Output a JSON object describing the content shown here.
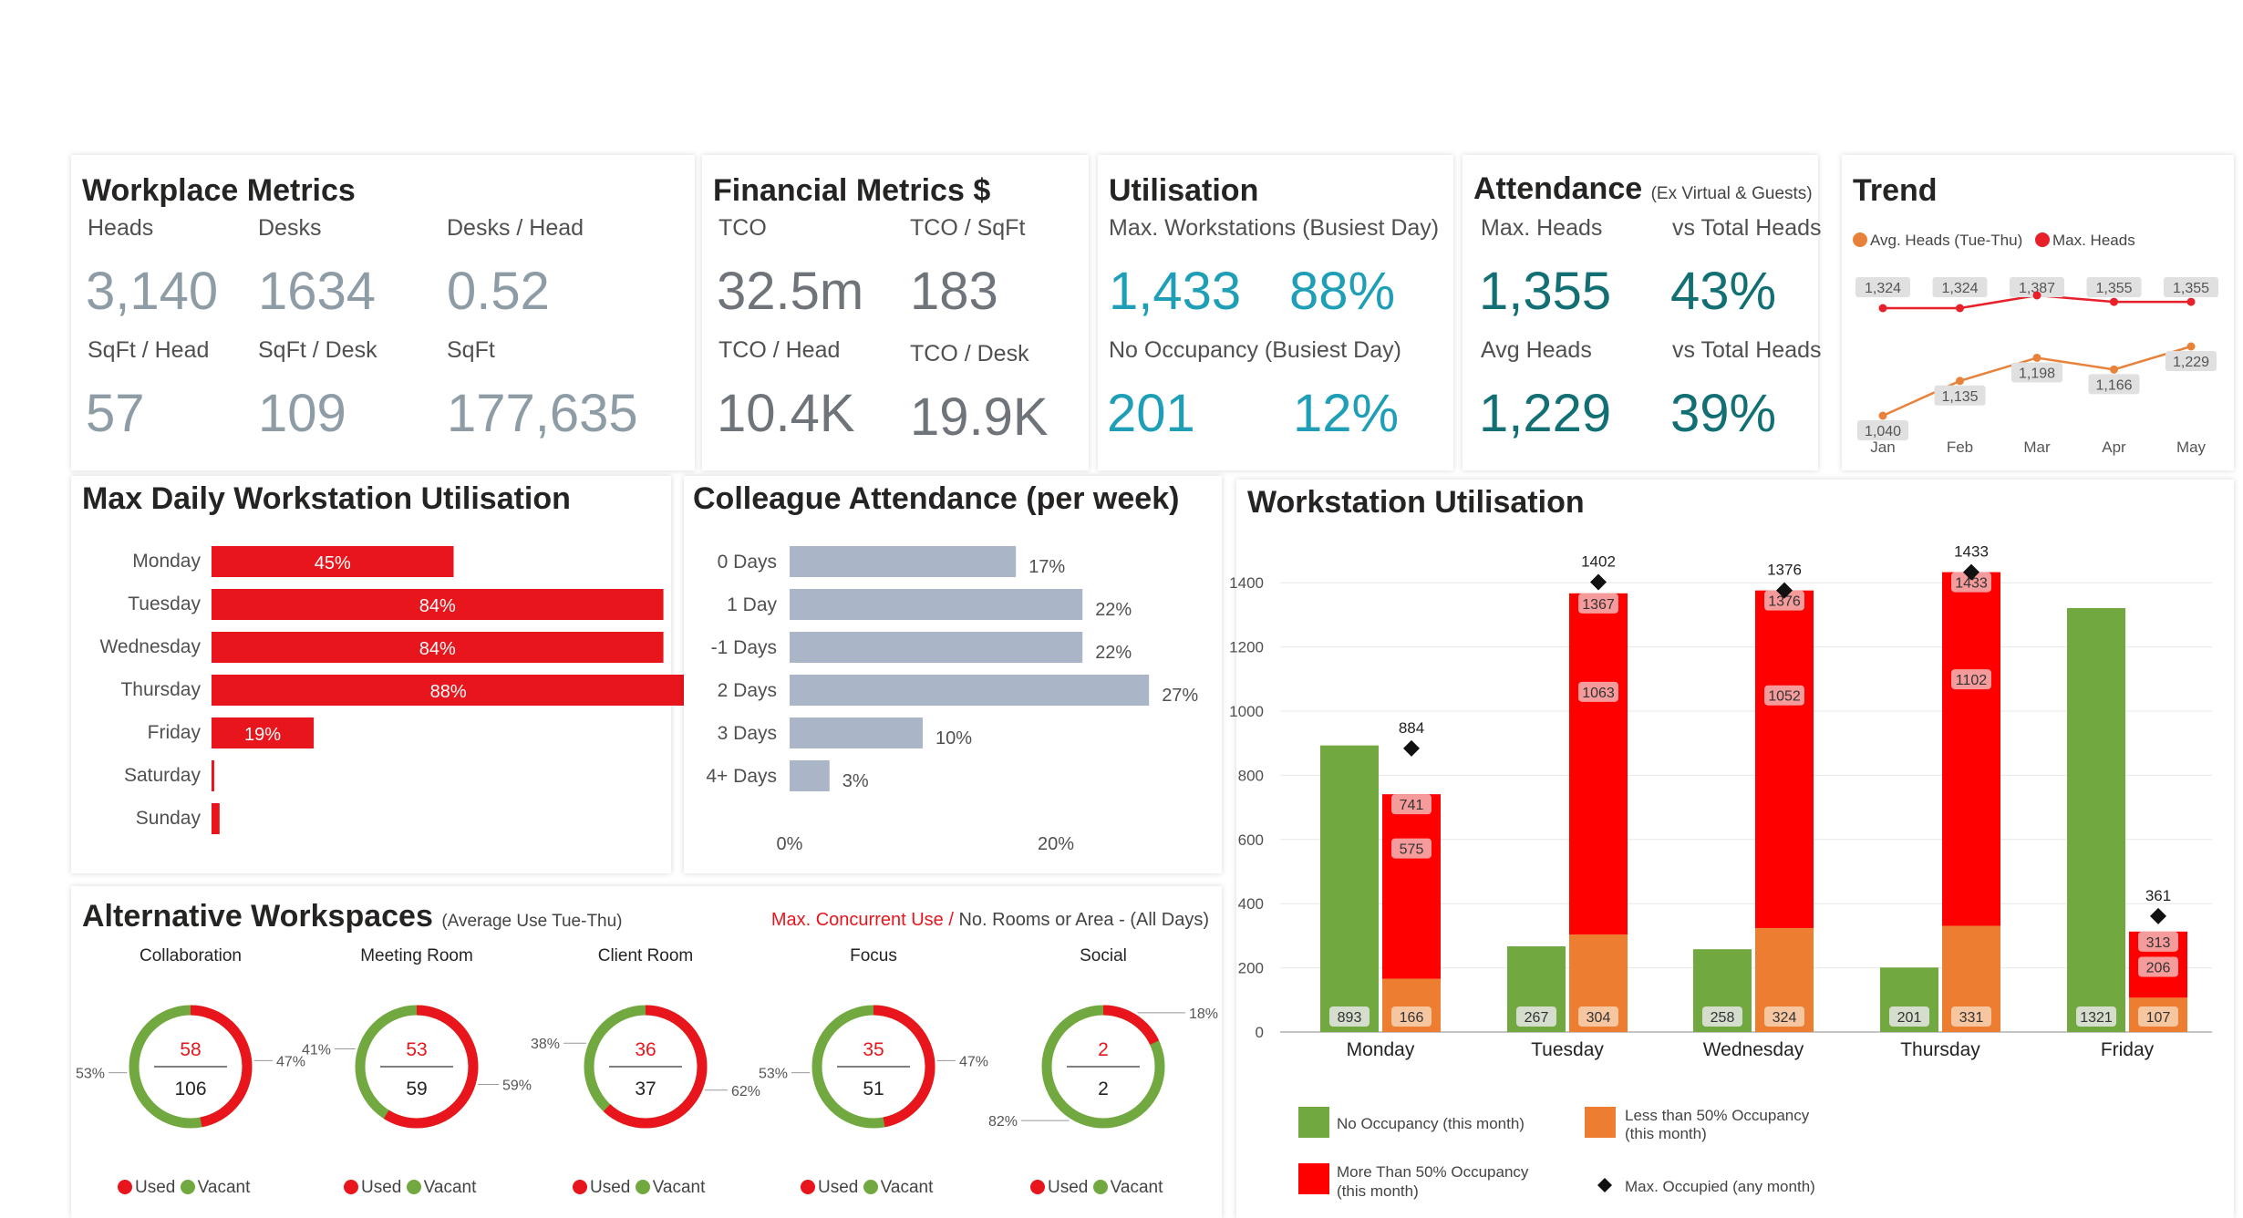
{
  "workplace": {
    "title": "Workplace Metrics",
    "heads_label": "Heads",
    "heads": "3,140",
    "desks_label": "Desks",
    "desks": "1634",
    "desks_head_label": "Desks / Head",
    "desks_head": "0.52",
    "sqft_head_label": "SqFt / Head",
    "sqft_head": "57",
    "sqft_desk_label": "SqFt / Desk",
    "sqft_desk": "109",
    "sqft_label": "SqFt",
    "sqft": "177,635"
  },
  "financial": {
    "title": "Financial Metrics $",
    "tco_label": "TCO",
    "tco": "32.5m",
    "tco_sqft_label": "TCO / SqFt",
    "tco_sqft": "183",
    "tco_head_label": "TCO / Head",
    "tco_head": "10.4K",
    "tco_desk_label": "TCO / Desk",
    "tco_desk": "19.9K"
  },
  "utilisation": {
    "title": "Utilisation",
    "max_label": "Max. Workstations (Busiest Day)",
    "max_value": "1,433",
    "max_pct": "88%",
    "noocc_label": "No Occupancy (Busiest Day)",
    "noocc_value": "201",
    "noocc_pct": "12%"
  },
  "attendance": {
    "title": "Attendance",
    "subtitle": "(Ex Virtual & Guests)",
    "max_heads_label": "Max. Heads",
    "max_heads": "1,355",
    "vs_total_label_1": "vs Total Heads",
    "vs_total_1": "43%",
    "avg_heads_label": "Avg Heads",
    "avg_heads": "1,229",
    "vs_total_label_2": "vs Total Heads",
    "vs_total_2": "39%"
  },
  "trend": {
    "title": "Trend",
    "legend_avg": "Avg. Heads (Tue-Thu)",
    "legend_max": "Max. Heads",
    "color_avg": "#e8823a",
    "color_max": "#e8202a",
    "months": [
      "Jan",
      "Feb",
      "Mar",
      "Apr",
      "May"
    ],
    "avg": [
      1040,
      1135,
      1198,
      1166,
      1229
    ],
    "avg_labels": [
      "1,040",
      "1,135",
      "1,198",
      "1,166",
      "1,229"
    ],
    "max": [
      1324,
      1324,
      1387,
      1355,
      1355
    ],
    "max_labels": [
      "1,324",
      "1,324",
      "1,387",
      "1,355",
      "1,355"
    ]
  },
  "daily": {
    "title": "Max Daily Workstation Utilisation",
    "color": "#e8161c",
    "days": [
      "Monday",
      "Tuesday",
      "Wednesday",
      "Thursday",
      "Friday",
      "Saturday",
      "Sunday"
    ],
    "values": [
      45,
      84,
      84,
      88,
      19,
      0.5,
      1.5
    ],
    "labels": [
      "45%",
      "84%",
      "84%",
      "88%",
      "19%",
      "",
      ""
    ]
  },
  "colleague": {
    "title": "Colleague Attendance (per week)",
    "color": "#aab6c8",
    "categories": [
      "0 Days",
      "1 Day",
      "-1 Days",
      "2 Days",
      "3 Days",
      "4+ Days"
    ],
    "values": [
      17,
      22,
      22,
      27,
      10,
      3
    ],
    "labels": [
      "17%",
      "22%",
      "22%",
      "27%",
      "10%",
      "3%"
    ],
    "axis_ticks": [
      "0%",
      "20%"
    ]
  },
  "alt": {
    "title": "Alternative Workspaces",
    "subtitle": "(Average Use Tue-Thu)",
    "right_red": "Max. Concurrent Use /",
    "right_rest": "No. Rooms or Area - (All Days)",
    "used_label": "Used",
    "vacant_label": "Vacant",
    "color_used": "#e8161c",
    "color_vacant": "#71a83f",
    "donuts": [
      {
        "name": "Collaboration",
        "top": "58",
        "bottom": "106",
        "used_pct": 47,
        "used_label": "47%",
        "vacant_label": "53%"
      },
      {
        "name": "Meeting Room",
        "top": "53",
        "bottom": "59",
        "used_pct": 59,
        "used_label": "59%",
        "vacant_label": "41%"
      },
      {
        "name": "Client Room",
        "top": "36",
        "bottom": "37",
        "used_pct": 62,
        "used_label": "62%",
        "vacant_label": "38%"
      },
      {
        "name": "Focus",
        "top": "35",
        "bottom": "51",
        "used_pct": 47,
        "used_label": "47%",
        "vacant_label": "53%"
      },
      {
        "name": "Social",
        "top": "2",
        "bottom": "2",
        "used_pct": 18,
        "used_label": "18%",
        "vacant_label": "82%"
      }
    ]
  },
  "ws": {
    "title": "Workstation Utilisation",
    "color_green": "#71a83f",
    "color_orange": "#ed7d31",
    "color_red": "#ff0000",
    "y_ticks": [
      0,
      200,
      400,
      600,
      800,
      1000,
      1200,
      1400
    ],
    "y_tick_labels": [
      "0",
      "200",
      "400",
      "600",
      "800",
      "1000",
      "1200",
      "1400"
    ],
    "y_max": 1500,
    "days": [
      "Monday",
      "Tuesday",
      "Wednesday",
      "Thursday",
      "Friday"
    ],
    "no_occ": [
      893,
      267,
      258,
      201,
      1321
    ],
    "no_occ_labels": [
      "893",
      "267",
      "258",
      "201",
      "1321"
    ],
    "less50": [
      166,
      304,
      324,
      331,
      107
    ],
    "less50_labels": [
      "166",
      "304",
      "324",
      "331",
      "107"
    ],
    "used_mid": [
      575,
      1063,
      1052,
      1102,
      206
    ],
    "used_mid_labels": [
      "575",
      "1063",
      "1052",
      "1102",
      "206"
    ],
    "used_total": [
      741,
      1367,
      1376,
      1433,
      313
    ],
    "used_total_labels": [
      "741",
      "1367",
      "1376",
      "1433",
      "313"
    ],
    "max_occ": [
      884,
      1402,
      1376,
      1433,
      361
    ],
    "max_occ_labels": [
      "884",
      "1402",
      "1376",
      "1433",
      "361"
    ],
    "legend": {
      "no_occ": "No Occupancy (this month)",
      "less50_a": "Less than 50% Occupancy",
      "less50_b": "(this month)",
      "more50_a": "More Than 50% Occupancy",
      "more50_b": "(this month)",
      "max_occ": "Max. Occupied (any month)"
    }
  }
}
